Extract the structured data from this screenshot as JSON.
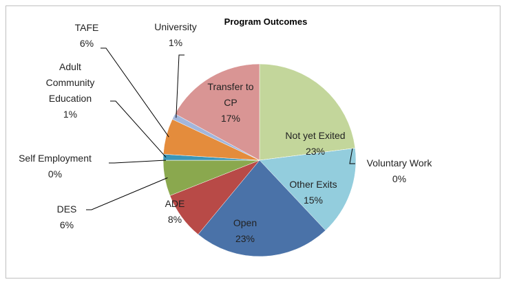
{
  "chart_data": {
    "type": "pie",
    "title": "Program Outcomes",
    "categories": [
      "Not yet Exited",
      "Voluntary Work",
      "Other Exits",
      "Open",
      "ADE",
      "DES",
      "Self Employment",
      "Adult Community Education",
      "TAFE",
      "University",
      "Transfer to CP"
    ],
    "values": [
      23,
      0,
      15,
      23,
      8,
      6,
      0,
      1,
      6,
      1,
      17
    ],
    "value_labels": [
      "23%",
      "0%",
      "15%",
      "23%",
      "8%",
      "6%",
      "0%",
      "1%",
      "6%",
      "1%",
      "17%"
    ],
    "colors": [
      "#c3d69b",
      "#8064a2",
      "#93cddd",
      "#4a72a8",
      "#b84a47",
      "#8aa84e",
      "#7f6aa3",
      "#3a96b8",
      "#e48c3c",
      "#a2b6dc",
      "#d99594"
    ]
  }
}
